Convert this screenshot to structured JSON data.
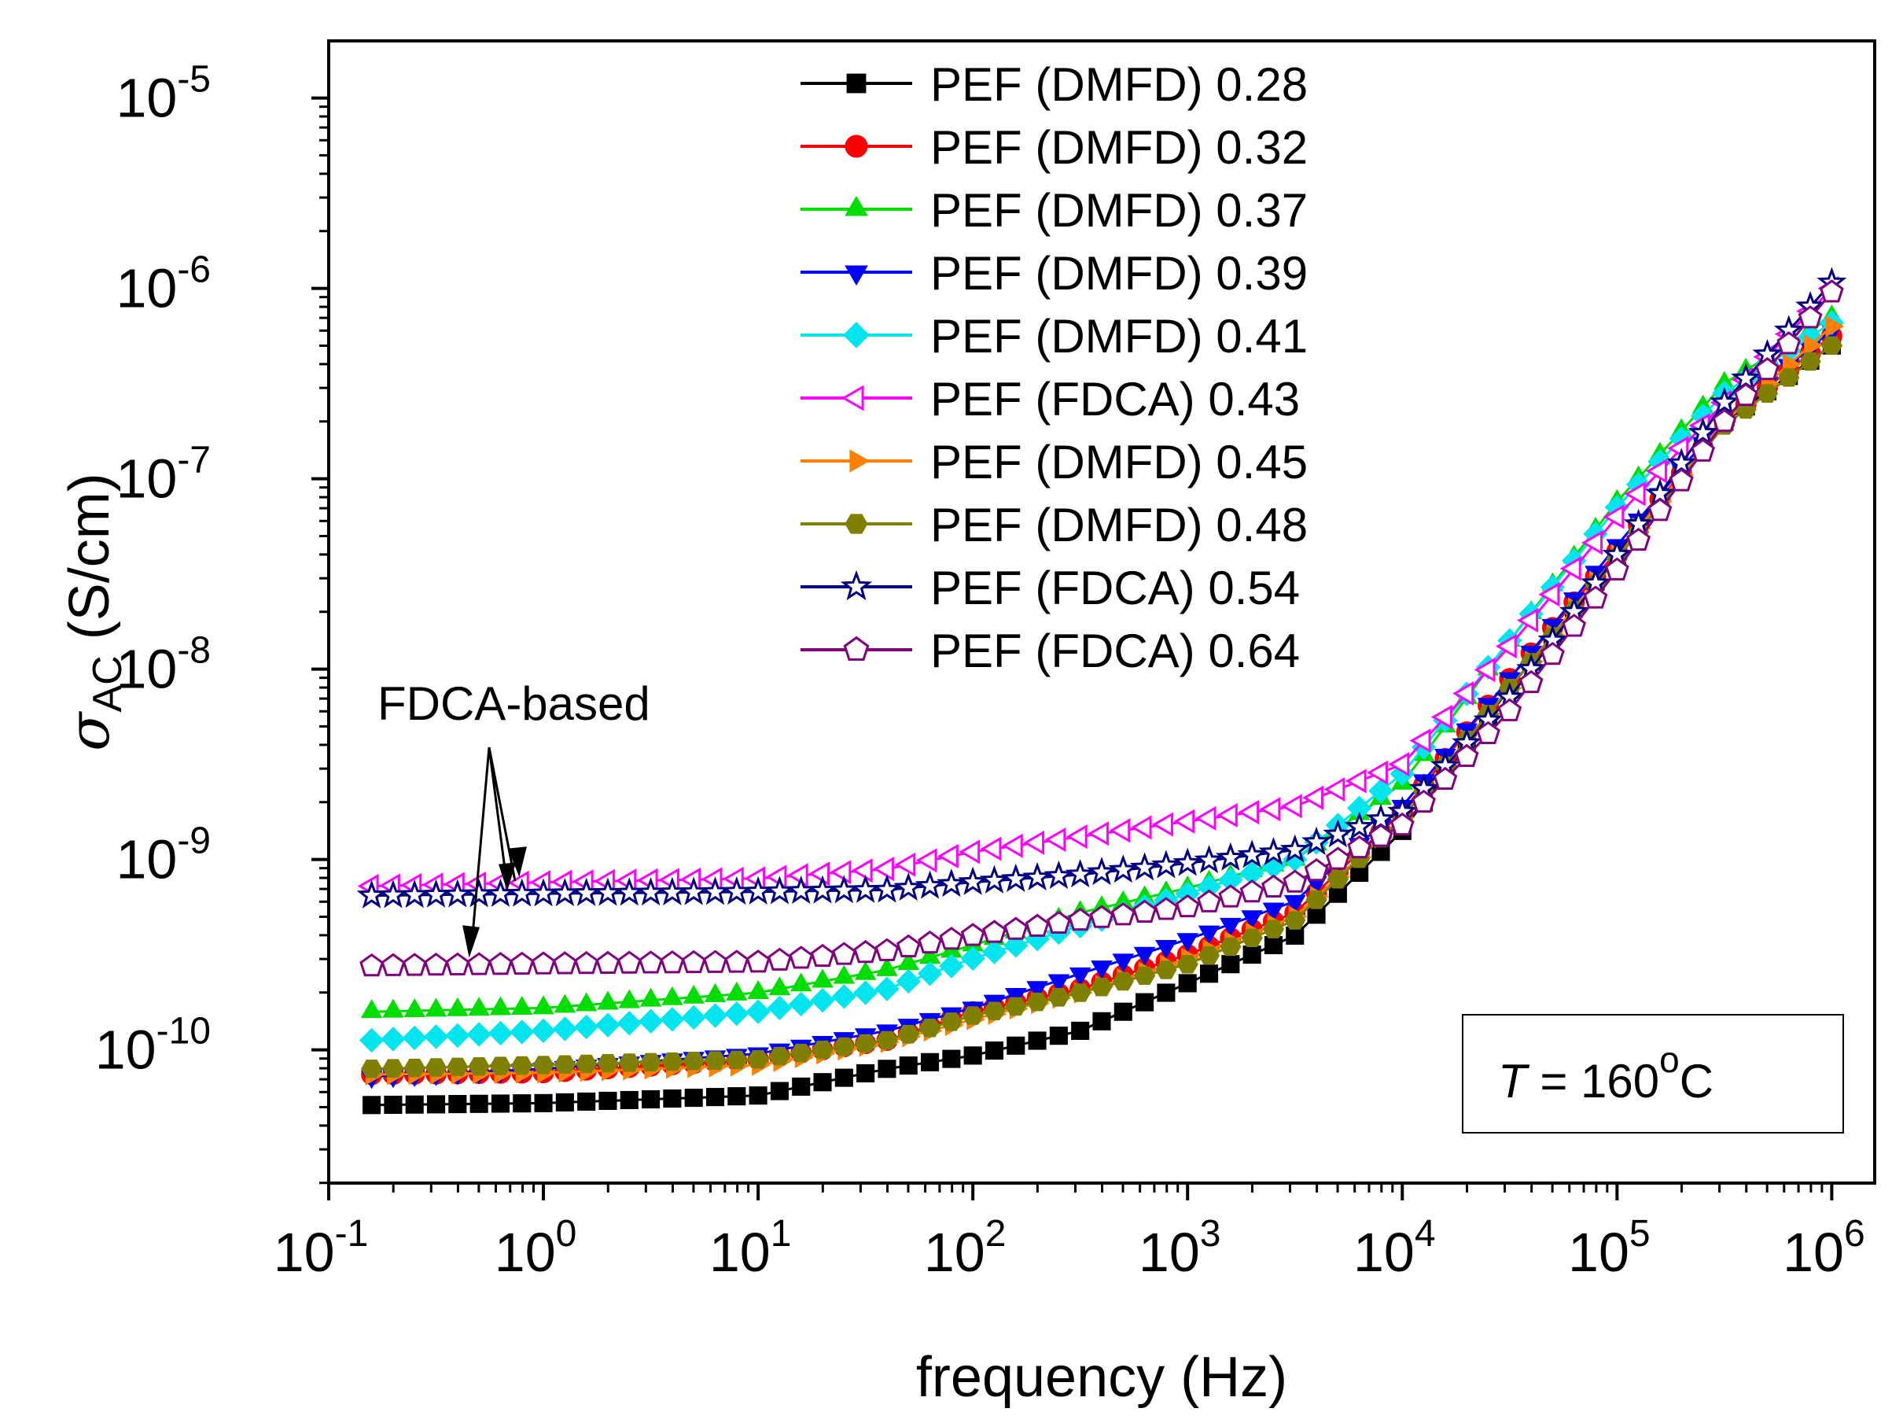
{
  "chart_data": {
    "type": "scatter",
    "title": "",
    "xlabel": "frequency (Hz)",
    "ylabel_symbol": "σ",
    "ylabel_sub": "AC",
    "ylabel_unit": " (S/cm)",
    "xscale": "log",
    "yscale": "log",
    "xlim_exp": [
      -1,
      6.2
    ],
    "ylim_exp": [
      -10.7,
      -4.7
    ],
    "x_tick_base": "10",
    "x_tick_exponents": [
      "-1",
      "0",
      "1",
      "2",
      "3",
      "4",
      "5",
      "6"
    ],
    "y_tick_base": "10",
    "y_tick_exponents": [
      "-10",
      "-9",
      "-8",
      "-7",
      "-6",
      "-5"
    ],
    "grid": false,
    "legend_position": "top-center",
    "annotation_temp": {
      "var": "T",
      "eq": " = 160",
      "sup": "o",
      "unit": "C"
    },
    "annotation_fdca": "FDCA-based",
    "series": [
      {
        "name": "PEF (DMFD) 0.28",
        "color": "#000000",
        "marker": "square",
        "filled": true,
        "anchors": [
          [
            -0.8,
            -10.29
          ],
          [
            0,
            -10.28
          ],
          [
            1,
            -10.24
          ],
          [
            1.6,
            -10.1
          ],
          [
            2,
            -10.03
          ],
          [
            2.5,
            -9.9
          ],
          [
            3,
            -9.65
          ],
          [
            3.5,
            -9.4
          ],
          [
            4,
            -8.85
          ],
          [
            4.5,
            -8.1
          ],
          [
            5,
            -7.4
          ],
          [
            5.5,
            -6.7
          ],
          [
            6,
            -6.3
          ]
        ]
      },
      {
        "name": "PEF (DMFD) 0.32",
        "color": "#ff0000",
        "marker": "circle",
        "filled": true,
        "anchors": [
          [
            -0.8,
            -10.13
          ],
          [
            0,
            -10.12
          ],
          [
            1,
            -10.05
          ],
          [
            1.6,
            -9.95
          ],
          [
            2,
            -9.8
          ],
          [
            2.5,
            -9.68
          ],
          [
            3,
            -9.5
          ],
          [
            3.5,
            -9.28
          ],
          [
            4,
            -8.75
          ],
          [
            4.5,
            -8.05
          ],
          [
            5,
            -7.38
          ],
          [
            5.5,
            -6.7
          ],
          [
            6,
            -6.25
          ]
        ]
      },
      {
        "name": "PEF (DMFD) 0.37",
        "color": "#00dd00",
        "marker": "triangle-up",
        "filled": true,
        "anchors": [
          [
            -0.8,
            -9.8
          ],
          [
            0,
            -9.78
          ],
          [
            1,
            -9.7
          ],
          [
            1.6,
            -9.58
          ],
          [
            2,
            -9.45
          ],
          [
            2.5,
            -9.28
          ],
          [
            3,
            -9.15
          ],
          [
            3.5,
            -9.0
          ],
          [
            4,
            -8.6
          ],
          [
            4.5,
            -7.85
          ],
          [
            5,
            -7.12
          ],
          [
            5.5,
            -6.5
          ],
          [
            6,
            -6.15
          ]
        ]
      },
      {
        "name": "PEF (DMFD) 0.39",
        "color": "#0000ff",
        "marker": "triangle-down",
        "filled": true,
        "anchors": [
          [
            -0.8,
            -10.14
          ],
          [
            0,
            -10.1
          ],
          [
            1,
            -10.02
          ],
          [
            1.6,
            -9.9
          ],
          [
            2,
            -9.78
          ],
          [
            2.5,
            -9.6
          ],
          [
            3,
            -9.42
          ],
          [
            3.5,
            -9.22
          ],
          [
            4,
            -8.72
          ],
          [
            4.5,
            -8.05
          ],
          [
            5,
            -7.35
          ],
          [
            5.5,
            -6.68
          ],
          [
            6,
            -6.22
          ]
        ]
      },
      {
        "name": "PEF (DMFD) 0.41",
        "color": "#00e5ee",
        "marker": "diamond",
        "filled": true,
        "anchors": [
          [
            -0.8,
            -9.95
          ],
          [
            0,
            -9.9
          ],
          [
            1,
            -9.8
          ],
          [
            1.6,
            -9.68
          ],
          [
            2,
            -9.52
          ],
          [
            2.5,
            -9.35
          ],
          [
            3,
            -9.18
          ],
          [
            3.5,
            -9.0
          ],
          [
            4,
            -8.55
          ],
          [
            4.5,
            -7.85
          ],
          [
            5,
            -7.15
          ],
          [
            5.5,
            -6.55
          ],
          [
            6,
            -6.18
          ]
        ]
      },
      {
        "name": "PEF (FDCA) 0.43",
        "color": "#ff00ff",
        "marker": "triangle-left",
        "filled": false,
        "anchors": [
          [
            -0.8,
            -9.14
          ],
          [
            0,
            -9.12
          ],
          [
            1,
            -9.1
          ],
          [
            1.6,
            -9.05
          ],
          [
            2,
            -8.96
          ],
          [
            2.5,
            -8.88
          ],
          [
            3,
            -8.8
          ],
          [
            3.5,
            -8.72
          ],
          [
            4,
            -8.5
          ],
          [
            4.5,
            -7.88
          ],
          [
            5,
            -7.2
          ],
          [
            5.5,
            -6.6
          ],
          [
            6,
            -6.0
          ]
        ]
      },
      {
        "name": "PEF (DMFD) 0.45",
        "color": "#ff8000",
        "marker": "triangle-right",
        "filled": true,
        "anchors": [
          [
            -0.8,
            -10.13
          ],
          [
            0,
            -10.12
          ],
          [
            1,
            -10.08
          ],
          [
            1.6,
            -9.96
          ],
          [
            2,
            -9.84
          ],
          [
            2.5,
            -9.7
          ],
          [
            3,
            -9.52
          ],
          [
            3.5,
            -9.3
          ],
          [
            4,
            -8.78
          ],
          [
            4.5,
            -8.1
          ],
          [
            5,
            -7.4
          ],
          [
            5.5,
            -6.7
          ],
          [
            6,
            -6.2
          ]
        ]
      },
      {
        "name": "PEF (DMFD) 0.48",
        "color": "#808000",
        "marker": "hexagon",
        "filled": true,
        "anchors": [
          [
            -0.8,
            -10.1
          ],
          [
            0,
            -10.08
          ],
          [
            1,
            -10.05
          ],
          [
            1.6,
            -9.95
          ],
          [
            2,
            -9.82
          ],
          [
            2.5,
            -9.7
          ],
          [
            3,
            -9.55
          ],
          [
            3.5,
            -9.32
          ],
          [
            4,
            -8.78
          ],
          [
            4.5,
            -8.1
          ],
          [
            5,
            -7.42
          ],
          [
            5.5,
            -6.72
          ],
          [
            6,
            -6.3
          ]
        ]
      },
      {
        "name": "PEF (FDCA) 0.54",
        "color": "#000080",
        "marker": "star",
        "filled": false,
        "anchors": [
          [
            -0.8,
            -9.19
          ],
          [
            0,
            -9.18
          ],
          [
            1,
            -9.17
          ],
          [
            1.6,
            -9.16
          ],
          [
            2,
            -9.12
          ],
          [
            2.5,
            -9.08
          ],
          [
            3,
            -9.02
          ],
          [
            3.5,
            -8.95
          ],
          [
            4,
            -8.75
          ],
          [
            4.5,
            -8.15
          ],
          [
            5,
            -7.4
          ],
          [
            5.5,
            -6.6
          ],
          [
            6,
            -5.97
          ]
        ]
      },
      {
        "name": "PEF (FDCA) 0.64",
        "color": "#800080",
        "marker": "pentagon",
        "filled": false,
        "anchors": [
          [
            -0.8,
            -9.56
          ],
          [
            0,
            -9.55
          ],
          [
            1,
            -9.54
          ],
          [
            1.6,
            -9.48
          ],
          [
            2,
            -9.4
          ],
          [
            2.5,
            -9.32
          ],
          [
            3,
            -9.25
          ],
          [
            3.5,
            -9.12
          ],
          [
            4,
            -8.82
          ],
          [
            4.5,
            -8.22
          ],
          [
            5,
            -7.48
          ],
          [
            5.5,
            -6.7
          ],
          [
            6,
            -6.02
          ]
        ]
      }
    ]
  },
  "colors": {
    "axis": "#000000",
    "background": "#ffffff"
  }
}
